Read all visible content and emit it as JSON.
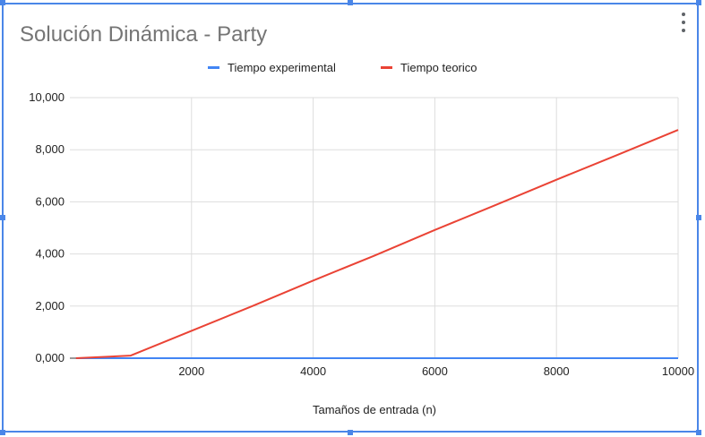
{
  "chart_data": {
    "type": "line",
    "title": "Solución Dinámica - Party",
    "xlabel": "Tamaños de entrada (n)",
    "ylabel": "",
    "xlim": [
      0,
      10000
    ],
    "ylim": [
      0,
      10000
    ],
    "x_ticks": [
      2000,
      4000,
      6000,
      8000,
      10000
    ],
    "x_tick_labels": [
      "2000",
      "4000",
      "6000",
      "8000",
      "10000"
    ],
    "y_ticks": [
      0,
      2000,
      4000,
      6000,
      8000,
      10000
    ],
    "y_tick_labels": [
      "0,000",
      "2,000",
      "4,000",
      "6,000",
      "8,000",
      "10,000"
    ],
    "grid": true,
    "legend_position": "top",
    "series": [
      {
        "name": "Tiempo experimental",
        "color": "#4285f4",
        "x": [
          100,
          1000,
          2000,
          3000,
          4000,
          5000,
          6000,
          7000,
          8000,
          9000,
          10000
        ],
        "y": [
          0,
          0,
          0,
          0,
          0,
          0,
          0,
          0,
          0,
          0,
          0
        ]
      },
      {
        "name": "Tiempo teorico",
        "color": "#ea4335",
        "x": [
          100,
          1000,
          2000,
          3000,
          4000,
          5000,
          6000,
          7000,
          8000,
          9000,
          10000
        ],
        "y": [
          0,
          100,
          1050,
          2000,
          2980,
          3930,
          4920,
          5880,
          6850,
          7800,
          8760
        ]
      }
    ]
  }
}
